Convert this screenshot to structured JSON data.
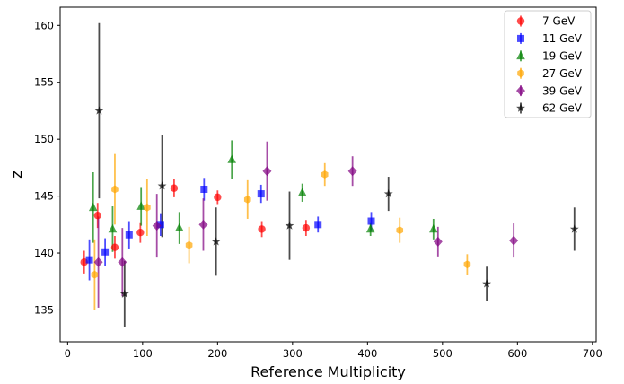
{
  "chart_data": {
    "type": "scatter",
    "title": "",
    "xlabel": "Reference Multiplicity",
    "ylabel": "z",
    "xlim": [
      -10,
      705
    ],
    "ylim": [
      132.2,
      161.6
    ],
    "xticks": [
      0,
      100,
      200,
      300,
      400,
      500,
      600,
      700
    ],
    "yticks": [
      135,
      140,
      145,
      150,
      155,
      160
    ],
    "legend_position": "top-right",
    "grid": false,
    "series": [
      {
        "name": "7 GeV",
        "color": "#ff0000",
        "marker": "circle",
        "points": [
          {
            "x": 22,
            "y": 139.2,
            "err": 1.0
          },
          {
            "x": 40,
            "y": 143.3,
            "err": 1.1
          },
          {
            "x": 63,
            "y": 140.5,
            "err": 1.0
          },
          {
            "x": 97,
            "y": 141.8,
            "err": 0.9
          },
          {
            "x": 142,
            "y": 145.7,
            "err": 0.8
          },
          {
            "x": 200,
            "y": 144.9,
            "err": 0.6
          },
          {
            "x": 259,
            "y": 142.1,
            "err": 0.7
          },
          {
            "x": 318,
            "y": 142.2,
            "err": 0.7
          }
        ]
      },
      {
        "name": "11 GeV",
        "color": "#0000ff",
        "marker": "square",
        "points": [
          {
            "x": 29,
            "y": 139.4,
            "err": 1.8
          },
          {
            "x": 50,
            "y": 140.1,
            "err": 1.2
          },
          {
            "x": 82,
            "y": 141.6,
            "err": 1.2
          },
          {
            "x": 124,
            "y": 142.5,
            "err": 1.0
          },
          {
            "x": 182,
            "y": 145.6,
            "err": 1.0
          },
          {
            "x": 258,
            "y": 145.2,
            "err": 0.8
          },
          {
            "x": 334,
            "y": 142.5,
            "err": 0.7
          },
          {
            "x": 405,
            "y": 142.8,
            "err": 0.8
          }
        ]
      },
      {
        "name": "19 GeV",
        "color": "#008000",
        "marker": "triangle",
        "points": [
          {
            "x": 34,
            "y": 144.0,
            "err": 3.1
          },
          {
            "x": 60,
            "y": 142.1,
            "err": 2.0
          },
          {
            "x": 98,
            "y": 144.1,
            "err": 1.7
          },
          {
            "x": 149,
            "y": 142.2,
            "err": 1.4
          },
          {
            "x": 219,
            "y": 148.2,
            "err": 1.7
          },
          {
            "x": 313,
            "y": 145.3,
            "err": 0.8
          },
          {
            "x": 404,
            "y": 142.1,
            "err": 0.6
          },
          {
            "x": 488,
            "y": 142.1,
            "err": 0.9
          }
        ]
      },
      {
        "name": "27 GeV",
        "color": "#ffa500",
        "marker": "hexagon",
        "points": [
          {
            "x": 36,
            "y": 138.1,
            "err": 3.1
          },
          {
            "x": 63,
            "y": 145.6,
            "err": 3.1
          },
          {
            "x": 106,
            "y": 144.0,
            "err": 2.5
          },
          {
            "x": 162,
            "y": 140.7,
            "err": 1.6
          },
          {
            "x": 240,
            "y": 144.7,
            "err": 1.7
          },
          {
            "x": 343,
            "y": 146.9,
            "err": 1.0
          },
          {
            "x": 443,
            "y": 142.0,
            "err": 1.1
          },
          {
            "x": 533,
            "y": 139.0,
            "err": 0.9
          }
        ]
      },
      {
        "name": "39 GeV",
        "color": "#800080",
        "marker": "diamond",
        "points": [
          {
            "x": 41,
            "y": 139.2,
            "err": 4.0
          },
          {
            "x": 73,
            "y": 139.2,
            "err": 3.0
          },
          {
            "x": 119,
            "y": 142.4,
            "err": 2.8
          },
          {
            "x": 181,
            "y": 142.5,
            "err": 2.3
          },
          {
            "x": 266,
            "y": 147.2,
            "err": 2.6
          },
          {
            "x": 380,
            "y": 147.2,
            "err": 1.3
          },
          {
            "x": 494,
            "y": 141.0,
            "err": 1.3
          },
          {
            "x": 595,
            "y": 141.1,
            "err": 1.5
          }
        ]
      },
      {
        "name": "62 GeV",
        "color": "#000000",
        "marker": "star",
        "points": [
          {
            "x": 42,
            "y": 152.5,
            "err": 7.7
          },
          {
            "x": 76,
            "y": 136.4,
            "err": 2.9
          },
          {
            "x": 126,
            "y": 145.9,
            "err": 4.5
          },
          {
            "x": 198,
            "y": 141.0,
            "err": 3.0
          },
          {
            "x": 296,
            "y": 142.4,
            "err": 3.0
          },
          {
            "x": 428,
            "y": 145.2,
            "err": 1.5
          },
          {
            "x": 559,
            "y": 137.3,
            "err": 1.5
          },
          {
            "x": 676,
            "y": 142.1,
            "err": 1.9
          }
        ]
      }
    ]
  }
}
